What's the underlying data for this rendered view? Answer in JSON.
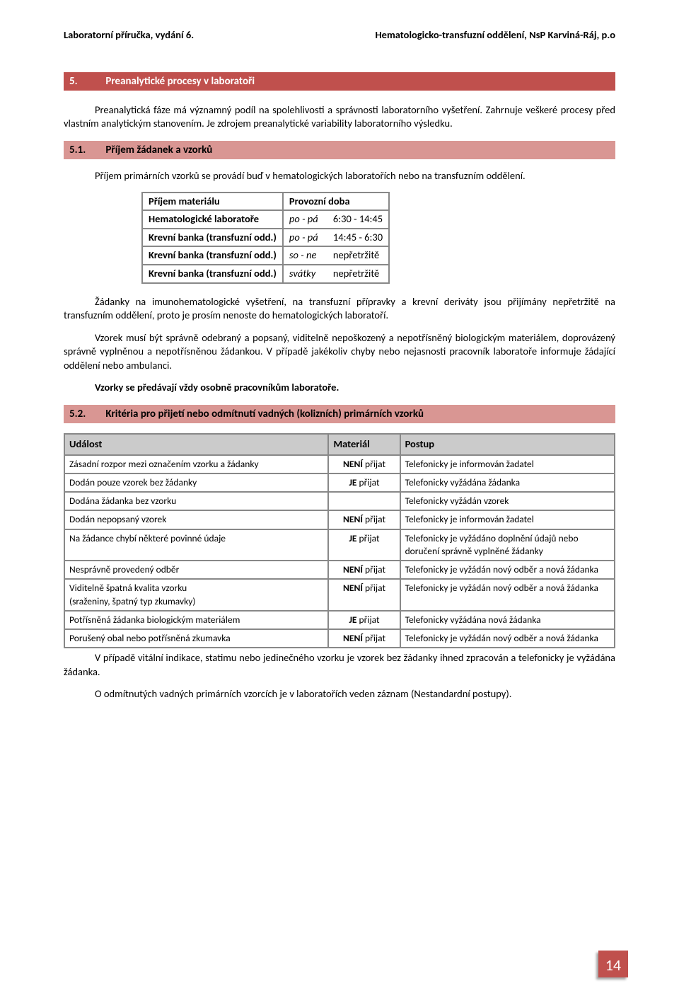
{
  "header": {
    "left": "Laboratorní příručka, vydání 6.",
    "right": "Hematologicko-transfuzní oddělení, NsP Karviná-Ráj, p.o"
  },
  "section5": {
    "num": "5.",
    "title": "Preanalytické procesy v laboratoři"
  },
  "intro_para": "Preanalytická fáze má významný podíl na spolehlivosti a správnosti laboratorního vyšetření. Zahrnuje veškeré procesy před vlastním analytickým stanovením. Je zdrojem preanalytické variability laboratorního výsledku.",
  "section51": {
    "num": "5.1.",
    "title": "Příjem žádanek a vzorků"
  },
  "s51_para": "Příjem primárních vzorků se provádí buď v hematologických laboratořích nebo na transfuzním oddělení.",
  "table1": {
    "header": [
      "Příjem materiálu",
      "Provozní doba"
    ],
    "rows": [
      {
        "c1": "Hematologické laboratoře",
        "c2a": "po - pá",
        "c2b": "6:30 - 14:45"
      },
      {
        "c1": "Krevní banka (transfuzní odd.)",
        "c2a": "po - pá",
        "c2b": "14:45 - 6:30"
      },
      {
        "c1": "Krevní banka (transfuzní odd.)",
        "c2a": "so - ne",
        "c2b": "nepřetržitě"
      },
      {
        "c1": "Krevní banka (transfuzní odd.)",
        "c2a": "svátky",
        "c2b": "nepřetržitě"
      }
    ]
  },
  "s51_p2": "Žádanky na imunohematologické vyšetření, na transfuzní přípravky a krevní deriváty jsou přijímány nepřetržitě na transfuzním oddělení, proto je prosím nenoste do hematologických laboratoří.",
  "s51_p3": "Vzorek musí být správně odebraný a popsaný, viditelně nepoškozený a nepotřísněný biologickým materiálem, doprovázený správně vyplněnou a nepotřísněnou žádankou. V případě jakékoliv chyby nebo nejasnosti pracovník laboratoře informuje žádající oddělení nebo ambulanci.",
  "s51_p4": "Vzorky se předávají vždy osobně pracovníkům laboratoře.",
  "section52": {
    "num": "5.2.",
    "title": "Kritéria pro přijetí nebo odmítnutí vadných (kolizních) primárních vzorků"
  },
  "table2": {
    "header": [
      "Událost",
      "Materiál",
      "Postup"
    ],
    "rows": [
      {
        "c1": "Zásadní rozpor mezi označením vzorku a žádanky",
        "c2": "NENÍ  přijat",
        "c3": "Telefonicky je informován žadatel"
      },
      {
        "c1": "Dodán pouze vzorek bez žádanky",
        "c2": "JE  přijat",
        "c3": "Telefonicky vyžádána žádanka"
      },
      {
        "c1": "Dodána žádanka bez vzorku",
        "c2": "",
        "c3": "Telefonicky vyžádán vzorek"
      },
      {
        "c1": "Dodán nepopsaný vzorek",
        "c2": "NENÍ  přijat",
        "c3": "Telefonicky je informován žadatel"
      },
      {
        "c1": "Na žádance chybí některé povinné údaje",
        "c2": "JE  přijat",
        "c3": "Telefonicky je vyžádáno doplnění údajů nebo doručení správně vyplněné žádanky"
      },
      {
        "c1": "Nesprávně provedený odběr",
        "c2": "NENÍ  přijat",
        "c2valign": "bottom",
        "c3": "Telefonicky je vyžádán nový odběr a nová žádanka"
      },
      {
        "c1": "Viditelně špatná kvalita vzorku\n(sraženiny, špatný typ zkumavky)",
        "c2": "NENÍ  přijat",
        "c3": "Telefonicky je vyžádán nový odběr a nová žádanka"
      },
      {
        "c1": "Potřísněná žádanka biologickým materiálem",
        "c2": "JE  přijat",
        "c3": "Telefonicky vyžádána nová žádanka"
      },
      {
        "c1": "Porušený obal nebo potřísněná zkumavka",
        "c2": "NENÍ  přijat",
        "c2valign": "bottom",
        "c3": "Telefonicky je vyžádán nový odběr a nová žádanka"
      }
    ]
  },
  "closing_p1": "V případě vitální indikace, statimu nebo jedinečného vzorku je vzorek bez žádanky ihned zpracován a telefonicky je vyžádána žádanka.",
  "closing_p2": "O odmítnutých vadných primárních vzorcích je v laboratořích veden záznam (Nestandardní postupy).",
  "page_number": "14"
}
